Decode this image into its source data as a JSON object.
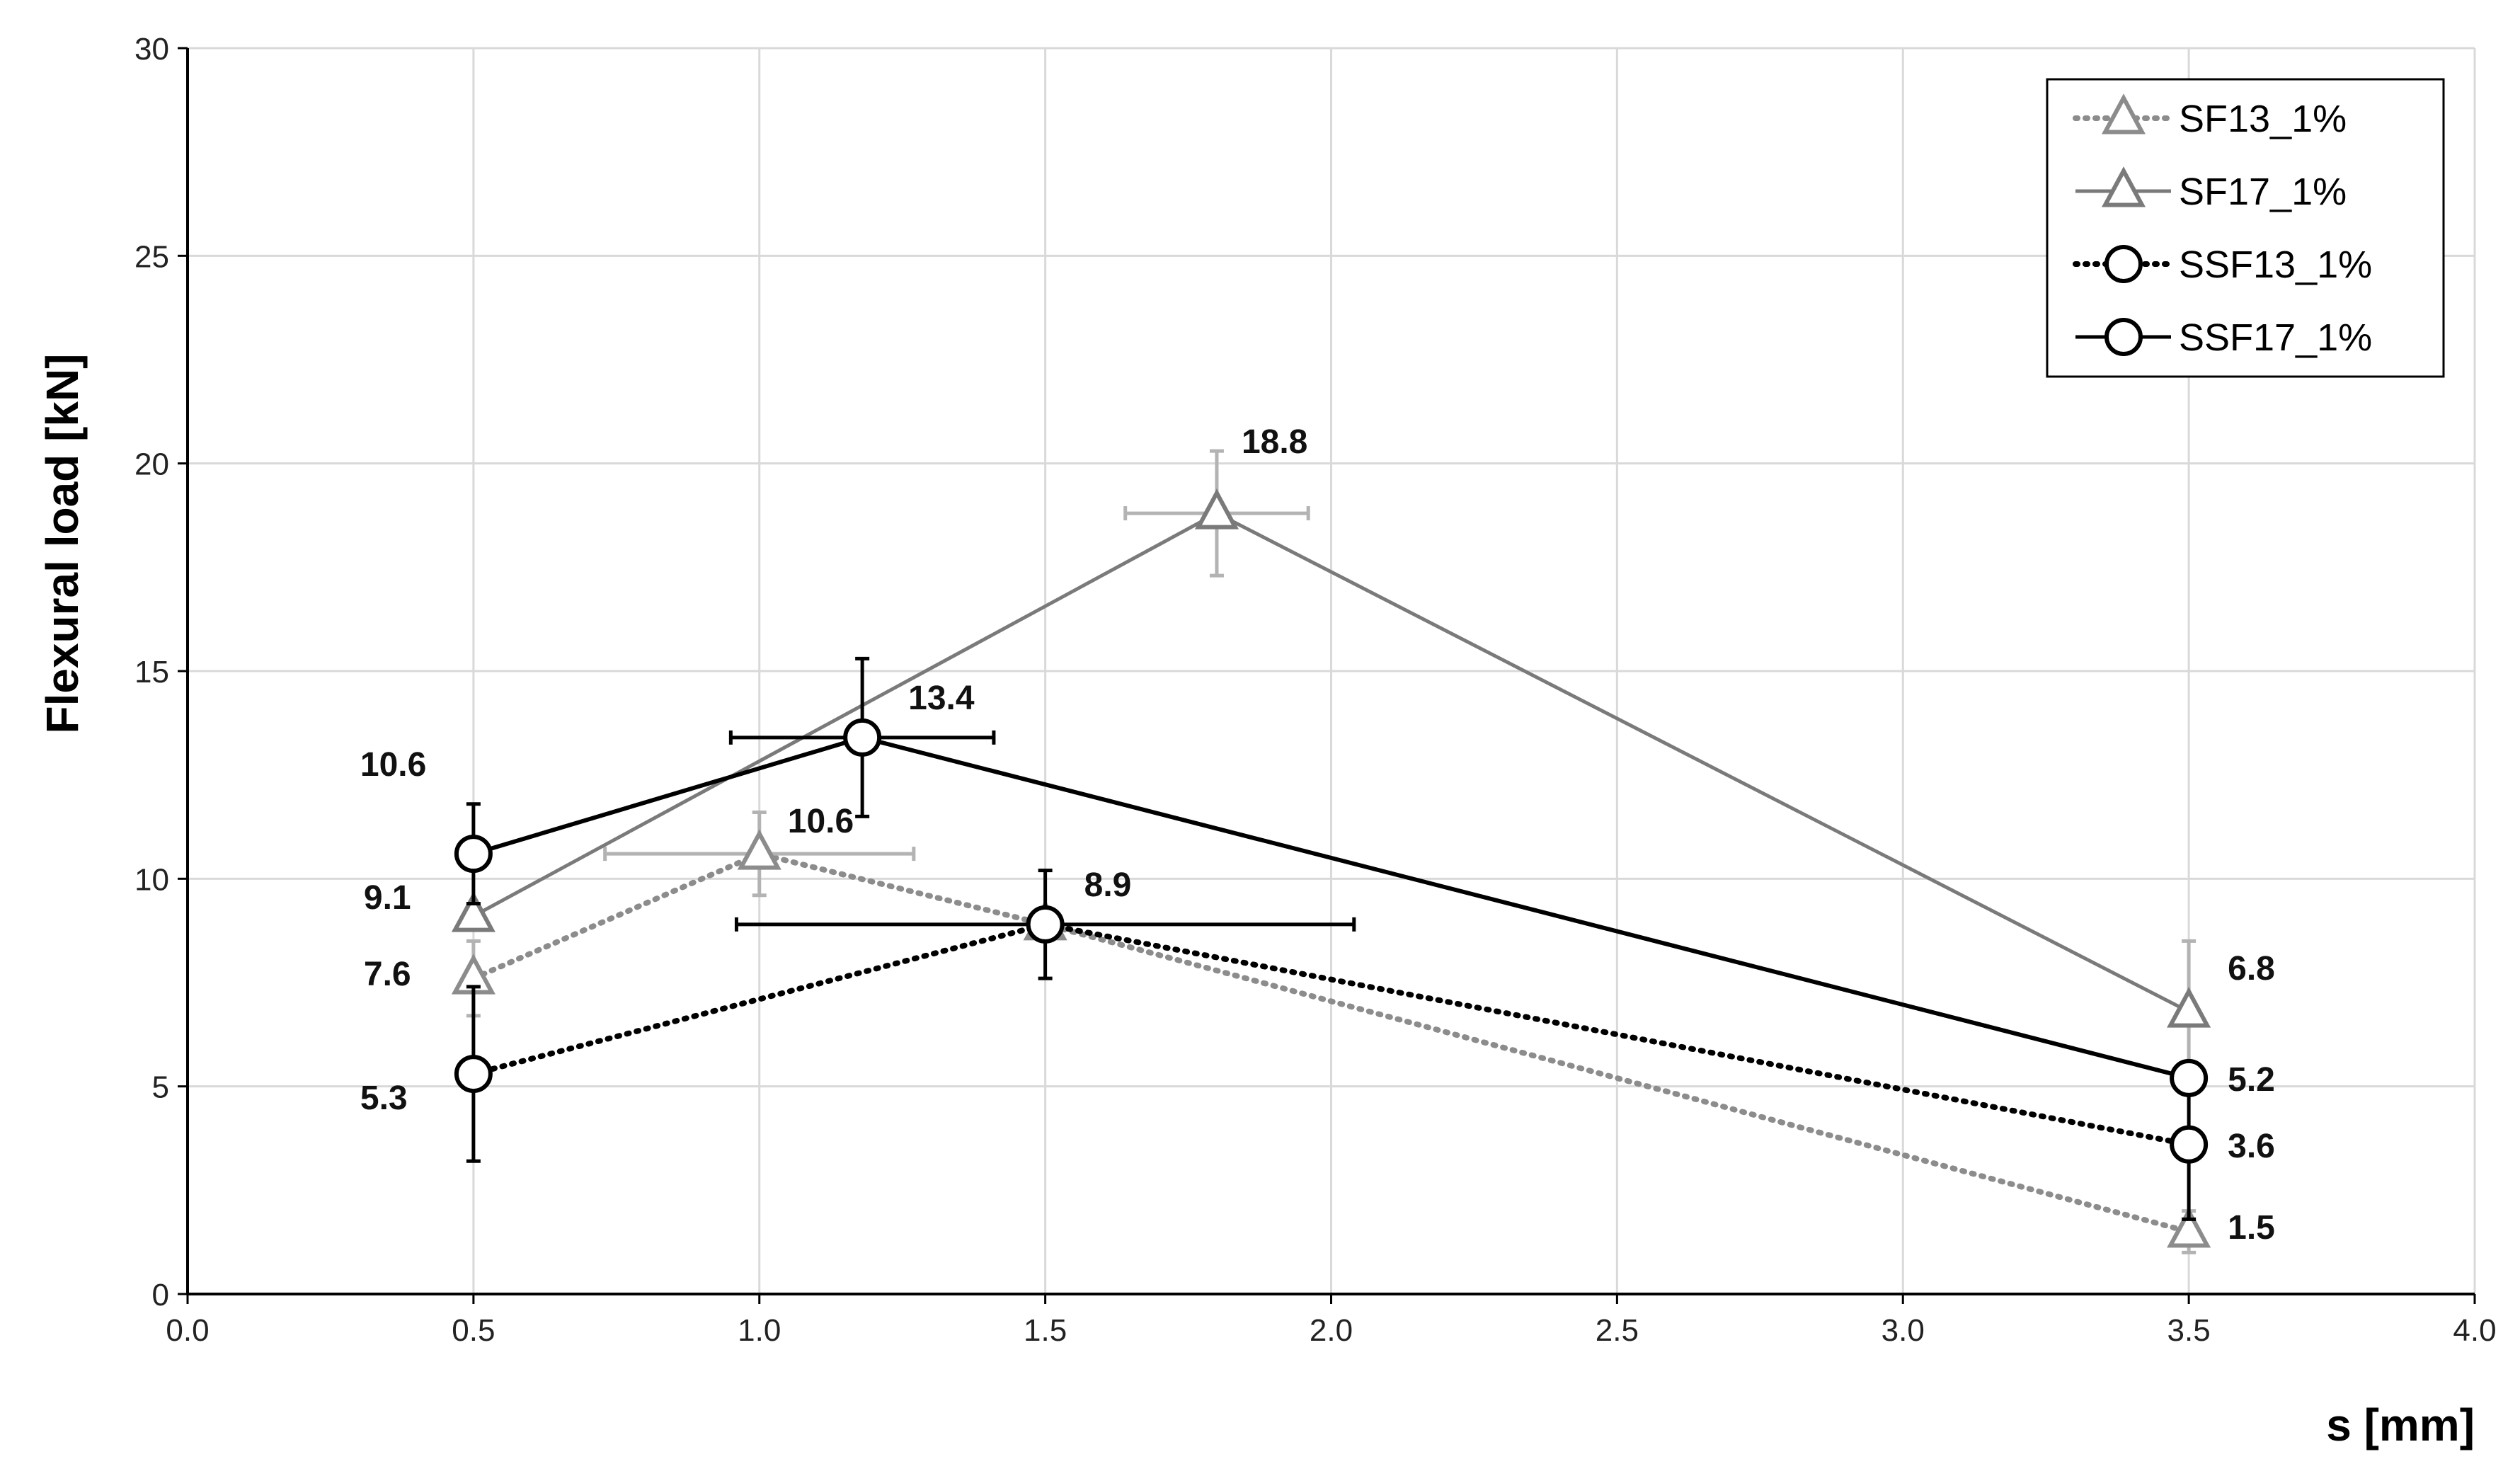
{
  "chart_data": {
    "type": "scatter",
    "title": "",
    "xlabel": "s [mm]",
    "ylabel": "Flexural load [kN]",
    "xlim": [
      0.0,
      4.0
    ],
    "ylim": [
      0,
      30
    ],
    "x_ticks": [
      "0.0",
      "0.5",
      "1.0",
      "1.5",
      "2.0",
      "2.5",
      "3.0",
      "3.5",
      "4.0"
    ],
    "y_ticks": [
      "0",
      "5",
      "10",
      "15",
      "20",
      "25",
      "30"
    ],
    "grid": true,
    "legend_position": "top-right",
    "series": [
      {
        "name": "SF13_1%",
        "color": "#8c8c8c",
        "line_style": "dotted",
        "marker": "triangle",
        "points": [
          {
            "x": 0.5,
            "y": 7.6,
            "yerr": 0.9
          },
          {
            "x": 1.0,
            "y": 10.6,
            "yerr": 1.0,
            "xerr": 0.27
          },
          {
            "x": 1.5,
            "y": 8.9
          },
          {
            "x": 3.5,
            "y": 1.5,
            "yerr": 0.5
          }
        ]
      },
      {
        "name": "SF17_1%",
        "color": "#7a7a7a",
        "line_style": "solid",
        "marker": "triangle",
        "points": [
          {
            "x": 0.5,
            "y": 9.1
          },
          {
            "x": 1.8,
            "y": 18.8,
            "yerr": 1.5,
            "xerr": 0.16
          },
          {
            "x": 3.5,
            "y": 6.8,
            "yerr": 1.7
          }
        ]
      },
      {
        "name": "SSF13_1%",
        "color": "#000000",
        "line_style": "dotted",
        "marker": "circle",
        "points": [
          {
            "x": 0.5,
            "y": 5.3,
            "yerr": 2.1
          },
          {
            "x": 1.5,
            "y": 8.9,
            "yerr": 1.3,
            "xerr": 0.54
          },
          {
            "x": 3.5,
            "y": 3.6,
            "yerr": 1.8
          }
        ]
      },
      {
        "name": "SSF17_1%",
        "color": "#000000",
        "line_style": "solid",
        "marker": "circle",
        "points": [
          {
            "x": 0.5,
            "y": 10.6,
            "yerr": 1.2
          },
          {
            "x": 1.18,
            "y": 13.4,
            "yerr": 1.9,
            "xerr": 0.23
          },
          {
            "x": 3.5,
            "y": 5.2
          }
        ]
      }
    ],
    "annotations": [
      {
        "text": "10.6",
        "x": 0.5,
        "y": 10.6
      },
      {
        "text": "9.1",
        "x": 0.5,
        "y": 9.1
      },
      {
        "text": "7.6",
        "x": 0.5,
        "y": 7.6
      },
      {
        "text": "5.3",
        "x": 0.5,
        "y": 5.3
      },
      {
        "text": "13.4",
        "x": 1.18,
        "y": 13.4
      },
      {
        "text": "10.6",
        "x": 1.0,
        "y": 10.6
      },
      {
        "text": "8.9",
        "x": 1.5,
        "y": 8.9
      },
      {
        "text": "18.8",
        "x": 1.8,
        "y": 18.8
      },
      {
        "text": "6.8",
        "x": 3.5,
        "y": 6.8
      },
      {
        "text": "5.2",
        "x": 3.5,
        "y": 5.2
      },
      {
        "text": "3.6",
        "x": 3.5,
        "y": 3.6
      },
      {
        "text": "1.5",
        "x": 3.5,
        "y": 1.5
      }
    ]
  }
}
